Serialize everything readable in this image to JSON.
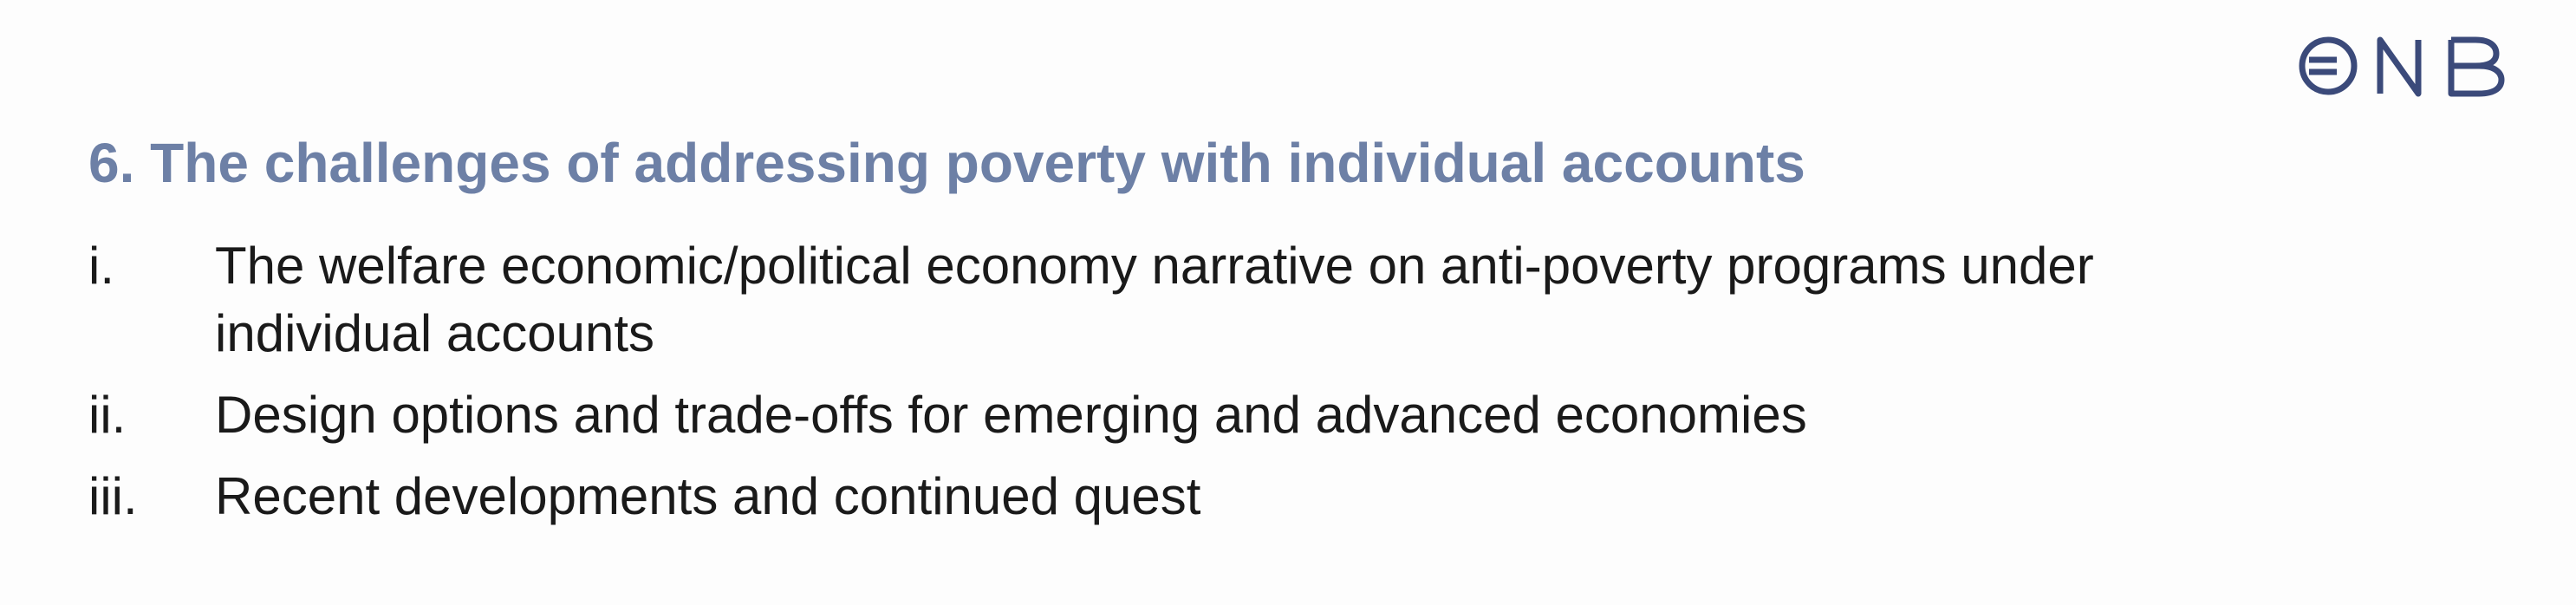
{
  "brand": {
    "logo_text": "ONB",
    "color": "#3b4a7a"
  },
  "slide": {
    "title": "6. The challenges of addressing poverty with individual accounts",
    "title_color": "#6d80a6",
    "items": [
      {
        "marker": "i.",
        "text": "The welfare economic/political economy narrative on anti-poverty programs under individual accounts"
      },
      {
        "marker": "ii.",
        "text": "Design options and trade-offs for emerging and advanced economies"
      },
      {
        "marker": "iii.",
        "text": "Recent developments and continued quest"
      }
    ]
  }
}
